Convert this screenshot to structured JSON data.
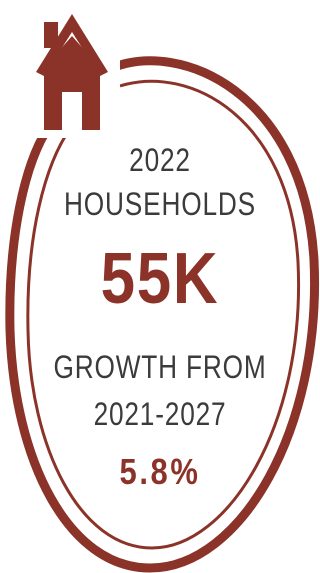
{
  "colors": {
    "accent": "#8c3329",
    "text": "#3b3b3b",
    "background": "#ffffff"
  },
  "icon": "house-icon",
  "stat": {
    "year": "2022",
    "metric": "HOUSEHOLDS",
    "value": "55K",
    "growth_line1": "GROWTH FROM",
    "growth_line2": "2021-2027",
    "growth_value": "5.8%"
  }
}
